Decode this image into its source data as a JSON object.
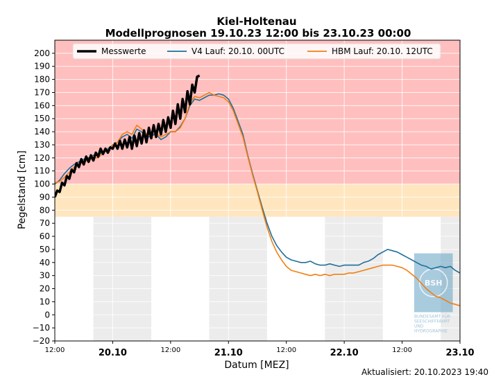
{
  "chart_data": {
    "type": "line",
    "title": "Kiel-Holtenau",
    "subtitle": "Modellprognosen 19.10.23 12:00 bis 23.10.23 00:00",
    "xlabel": "Datum [MEZ]",
    "ylabel": "Pegelstand [cm]",
    "ylim": [
      -20,
      210
    ],
    "xlim": [
      0,
      84
    ],
    "yticks": [
      -20,
      -10,
      0,
      10,
      20,
      30,
      40,
      50,
      60,
      70,
      80,
      90,
      100,
      110,
      120,
      130,
      140,
      150,
      160,
      170,
      180,
      190,
      200
    ],
    "xticks": [
      {
        "x": 0,
        "label": "12:00",
        "major": false
      },
      {
        "x": 12,
        "label": "20.10",
        "major": true
      },
      {
        "x": 24,
        "label": "12:00",
        "major": false
      },
      {
        "x": 36,
        "label": "21.10",
        "major": true
      },
      {
        "x": 48,
        "label": "12:00",
        "major": false
      },
      {
        "x": 60,
        "label": "22.10",
        "major": true
      },
      {
        "x": 72,
        "label": "12:00",
        "major": false
      },
      {
        "x": 84,
        "label": "23.10",
        "major": true
      }
    ],
    "bands": [
      {
        "from": 100,
        "to": 210,
        "color": "#ffbfbf"
      },
      {
        "from": 75,
        "to": 100,
        "color": "#ffe6bf"
      }
    ],
    "night_shading": [
      [
        8,
        20
      ],
      [
        32,
        44
      ],
      [
        56,
        68
      ],
      [
        80,
        84
      ]
    ],
    "legend_placement": "top",
    "grid": true,
    "series": [
      {
        "name": "Messwerte",
        "color": "#000000",
        "x": [
          0,
          0.5,
          1,
          1.5,
          2,
          2.5,
          3,
          3.5,
          4,
          4.5,
          5,
          5.5,
          6,
          6.5,
          7,
          7.5,
          8,
          8.5,
          9,
          9.5,
          10,
          10.5,
          11,
          11.5,
          12,
          12.5,
          13,
          13.5,
          14,
          14.5,
          15,
          15.5,
          16,
          16.5,
          17,
          17.5,
          18,
          18.5,
          19,
          19.5,
          20,
          20.5,
          21,
          21.5,
          22,
          22.5,
          23,
          23.5,
          24,
          24.5,
          25,
          25.5,
          26,
          26.5,
          27,
          27.5,
          28,
          28.5,
          29,
          29.5,
          30
        ],
        "values": [
          90,
          95,
          94,
          101,
          99,
          106,
          104,
          111,
          109,
          116,
          113,
          119,
          115,
          121,
          117,
          122,
          118,
          124,
          121,
          127,
          123,
          127,
          124,
          128,
          127,
          131,
          127,
          133,
          127,
          134,
          128,
          136,
          127,
          137,
          129,
          139,
          131,
          141,
          132,
          143,
          135,
          145,
          136,
          146,
          138,
          149,
          140,
          151,
          143,
          156,
          146,
          161,
          150,
          165,
          155,
          171,
          161,
          176,
          170,
          182,
          183
        ]
      },
      {
        "name": "V4 Lauf: 20.10. 00UTC",
        "color": "#1f6e9a",
        "x": [
          0,
          1,
          2,
          3,
          4,
          5,
          6,
          7,
          8,
          9,
          10,
          11,
          12,
          13,
          14,
          15,
          16,
          17,
          18,
          19,
          20,
          21,
          22,
          23,
          24,
          25,
          26,
          27,
          28,
          29,
          30,
          31,
          32,
          33,
          34,
          35,
          36,
          37,
          38,
          39,
          40,
          41,
          42,
          43,
          44,
          45,
          46,
          47,
          48,
          49,
          50,
          51,
          52,
          53,
          54,
          55,
          56,
          57,
          58,
          59,
          60,
          61,
          62,
          63,
          64,
          65,
          66,
          67,
          68,
          69,
          70,
          71,
          72,
          73,
          74,
          75,
          76,
          77,
          78,
          79,
          80,
          81,
          82,
          83,
          84
        ],
        "values": [
          100,
          103,
          108,
          112,
          115,
          117,
          119,
          120,
          122,
          122,
          125,
          127,
          130,
          132,
          136,
          138,
          135,
          142,
          140,
          135,
          137,
          138,
          134,
          136,
          140,
          140,
          144,
          150,
          160,
          165,
          164,
          166,
          168,
          168,
          169,
          168,
          165,
          158,
          148,
          138,
          122,
          108,
          95,
          82,
          70,
          60,
          53,
          48,
          44,
          42,
          41,
          40,
          40,
          41,
          39,
          38,
          38,
          39,
          38,
          37,
          38,
          38,
          38,
          38,
          40,
          41,
          43,
          46,
          48,
          50,
          49,
          48,
          46,
          44,
          42,
          40,
          38,
          37,
          35,
          36,
          37,
          36,
          37,
          34,
          32
        ]
      },
      {
        "name": "HBM Lauf: 20.10. 12UTC",
        "color": "#f07f12",
        "x": [
          0,
          1,
          2,
          3,
          4,
          5,
          6,
          7,
          8,
          9,
          10,
          11,
          12,
          13,
          14,
          15,
          16,
          17,
          18,
          19,
          20,
          21,
          22,
          23,
          24,
          25,
          26,
          27,
          28,
          29,
          30,
          31,
          32,
          33,
          34,
          35,
          36,
          37,
          38,
          39,
          40,
          41,
          42,
          43,
          44,
          45,
          46,
          47,
          48,
          49,
          50,
          51,
          52,
          53,
          54,
          55,
          56,
          57,
          58,
          59,
          60,
          61,
          62,
          63,
          64,
          65,
          66,
          67,
          68,
          69,
          70,
          71,
          72,
          73,
          74,
          75,
          76,
          77,
          78,
          79,
          80,
          81,
          82,
          83,
          84
        ],
        "values": [
          101,
          102,
          105,
          109,
          113,
          115,
          117,
          118,
          120,
          120,
          124,
          126,
          130,
          132,
          138,
          140,
          138,
          145,
          142,
          138,
          138,
          139,
          136,
          138,
          140,
          140,
          143,
          150,
          162,
          167,
          166,
          168,
          170,
          168,
          167,
          166,
          163,
          156,
          146,
          136,
          121,
          107,
          94,
          80,
          67,
          56,
          48,
          42,
          37,
          34,
          33,
          32,
          31,
          30,
          31,
          30,
          31,
          30,
          31,
          31,
          31,
          32,
          32,
          33,
          34,
          35,
          36,
          37,
          38,
          38,
          38,
          37,
          36,
          34,
          31,
          28,
          24,
          20,
          17,
          14,
          13,
          11,
          9,
          8,
          7
        ]
      }
    ],
    "footer": "Aktualisiert: 20.10.2023 19:40"
  },
  "watermark": {
    "badge": "BSH",
    "lines": [
      "BUNDESAMT FÜR",
      "SEESCHIFFFAHRT",
      "UND",
      "HYDROGRAPHIE"
    ]
  }
}
